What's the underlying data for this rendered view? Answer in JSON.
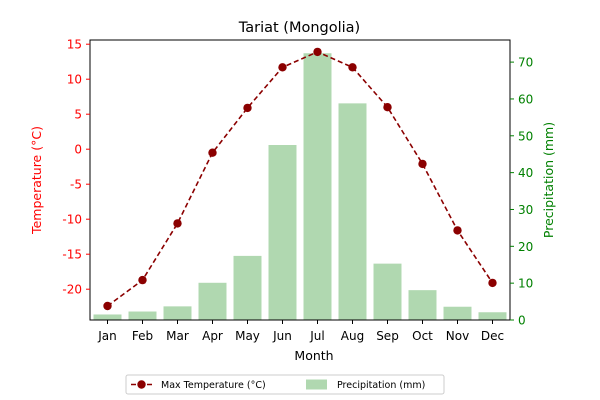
{
  "chart_data": {
    "type": "bar+line",
    "title": "Tariat (Mongolia)",
    "xlabel": "Month",
    "categories": [
      "Jan",
      "Feb",
      "Mar",
      "Apr",
      "May",
      "Jun",
      "Jul",
      "Aug",
      "Sep",
      "Oct",
      "Nov",
      "Dec"
    ],
    "left_axis": {
      "label": "Temperature (°C)",
      "color": "#ff0000",
      "ylim": [
        -24.4,
        15.6
      ],
      "ticks": [
        15,
        10,
        5,
        0,
        -5,
        -10,
        -15,
        -20
      ]
    },
    "right_axis": {
      "label": "Precipitation (mm)",
      "color": "#008000",
      "ylim": [
        0,
        76
      ],
      "ticks": [
        70,
        60,
        50,
        40,
        30,
        20,
        10,
        0
      ]
    },
    "series": [
      {
        "name": "Max Temperature (°C)",
        "type": "line",
        "axis": "left",
        "color": "#8b0000",
        "style": "dashed",
        "marker": "circle",
        "values": [
          -22.4,
          -18.7,
          -10.6,
          -0.5,
          5.9,
          11.7,
          13.9,
          11.7,
          6.0,
          -2.1,
          -11.6,
          -19.1
        ]
      },
      {
        "name": "Precipitation (mm)",
        "type": "bar",
        "axis": "right",
        "color": "#b0d8b0",
        "values": [
          1.5,
          2.3,
          3.7,
          10.1,
          17.4,
          47.5,
          72.4,
          58.8,
          15.3,
          8.1,
          3.6,
          2.1
        ]
      }
    ],
    "legend": {
      "position": "bottom-center",
      "ncol": 2
    }
  }
}
